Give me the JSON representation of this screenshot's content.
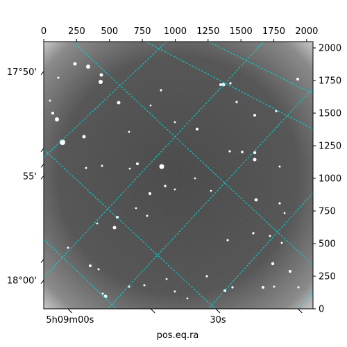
{
  "chart_data": {
    "type": "image",
    "xlabel": "pos.eq.ra",
    "ylabel": "",
    "pixel_axis": {
      "xlim": [
        0,
        2048
      ],
      "ylim": [
        0,
        2048
      ],
      "x_ticks": [
        0,
        250,
        500,
        750,
        1000,
        1250,
        1500,
        1750,
        2000
      ],
      "x_tick_labels": [
        "0",
        "250",
        "500",
        "750",
        "1000",
        "1250",
        "1500",
        "1750",
        "2000"
      ],
      "y_ticks": [
        0,
        250,
        500,
        750,
        1000,
        1250,
        1500,
        1750,
        2000
      ],
      "y_tick_labels": [
        "0",
        "250",
        "500",
        "750",
        "1000",
        "1250",
        "1500",
        "1750",
        "2000"
      ]
    },
    "world_axis": {
      "ra_labels": [
        {
          "text": "5h09m00s",
          "x": 200
        },
        {
          "text": "30s",
          "x": 1325
        }
      ],
      "dec_labels": [
        {
          "text": "17°50'",
          "y": 1820
        },
        {
          "text": "55'",
          "y": 1020
        },
        {
          "text": "18°00'",
          "y": 220
        }
      ]
    },
    "grid": true,
    "grid_color": "#00d8d8",
    "image_background": "#5a5a5a"
  }
}
